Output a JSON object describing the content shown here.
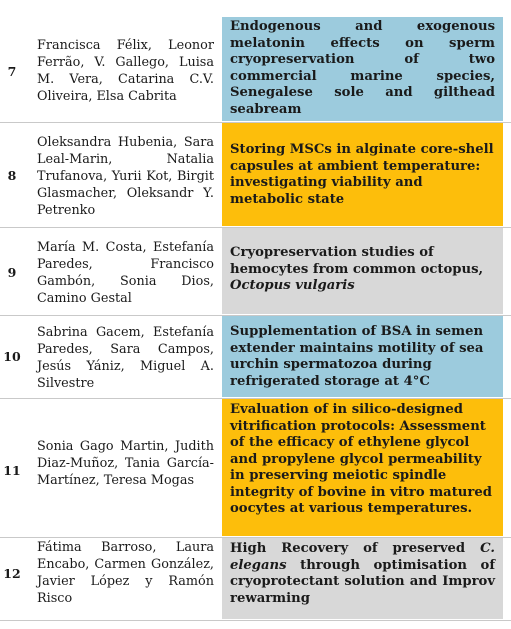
{
  "colors": {
    "blue": "#9ccbdd",
    "orange": "#fdbe0b",
    "gray": "#d8d8d8"
  },
  "rows": [
    {
      "number": "7",
      "authors": "Francisca Félix, Leonor Ferrão, V. Gallego, Luisa M. Vera, Catarina C.V. Oliveira, Elsa Cabrita",
      "title": "Endogenous and exogenous melatonin effects on sperm cryopreservation of two commercial marine species, Senegalese sole and gilthead seabream",
      "color": "blue"
    },
    {
      "number": "8",
      "authors": "Oleksandra Hubenia, Sara Leal-Marin, Natalia Trufanova, Yurii Kot, Birgit Glasmacher, Oleksandr Y. Petrenko",
      "title": "Storing MSCs in alginate core-shell capsules at ambient temperature: investigating viability and metabolic state",
      "color": "orange"
    },
    {
      "number": "9",
      "authors": "María M. Costa, Estefanía Paredes, Francisco Gambón, Sonia Dios, Camino Gestal",
      "title_main": "Cryopreservation studies of hemocytes from common octopus,",
      "title_italic": "Octopus vulgaris",
      "color": "gray"
    },
    {
      "number": "10",
      "authors": "Sabrina Gacem, Estefanía Paredes, Sara Campos, Jesús Yániz, Miguel A. Silvestre",
      "title": "Supplementation of BSA in semen extender maintains motility of sea urchin spermatozoa during refrigerated storage at 4°C",
      "color": "blue"
    },
    {
      "number": "11",
      "authors": "Sonia Gago Martin, Judith Diaz-Muñoz, Tania García-Martínez, Teresa Mogas",
      "title": "Evaluation of in silico-designed vitrification protocols: Assessment of the efficacy of ethylene glycol and propylene glycol permeability in preserving meiotic spindle integrity of bovine in vitro matured oocytes at various temperatures.",
      "color": "orange"
    },
    {
      "number": "12",
      "authors": "Fátima Barroso, Laura Encabo, Carmen González, Javier López y Ramón Risco",
      "title_before": "High Recovery of preserved",
      "title_italic": "C. elegans",
      "title_after": "through optimisation of cryoprotectant solution and Improv rewarming",
      "color": "gray"
    }
  ]
}
